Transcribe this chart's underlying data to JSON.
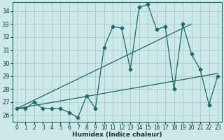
{
  "xlabel": "Humidex (Indice chaleur)",
  "background_color": "#cce8e8",
  "grid_color": "#aacece",
  "line_color": "#1a6b6b",
  "xlim": [
    -0.5,
    23.5
  ],
  "ylim": [
    25.5,
    34.7
  ],
  "yticks": [
    26,
    27,
    28,
    29,
    30,
    31,
    32,
    33,
    34
  ],
  "xticks": [
    0,
    1,
    2,
    3,
    4,
    5,
    6,
    7,
    8,
    9,
    10,
    11,
    12,
    13,
    14,
    15,
    16,
    17,
    18,
    19,
    20,
    21,
    22,
    23
  ],
  "line1_x": [
    0,
    1,
    2,
    3,
    4,
    5,
    6,
    7,
    8,
    9,
    10,
    11,
    12,
    13,
    14,
    15,
    16,
    17,
    18,
    19,
    20,
    21,
    22,
    23
  ],
  "line1_y": [
    26.5,
    26.5,
    27.0,
    26.5,
    26.5,
    26.5,
    26.2,
    25.8,
    27.5,
    26.5,
    31.2,
    32.8,
    32.7,
    29.5,
    34.3,
    34.5,
    32.6,
    32.8,
    28.0,
    33.0,
    30.7,
    29.5,
    26.8,
    29.0
  ],
  "line2_x": [
    0,
    23
  ],
  "line2_y": [
    26.5,
    29.2
  ],
  "line3_x": [
    0,
    20
  ],
  "line3_y": [
    26.5,
    33.0
  ]
}
